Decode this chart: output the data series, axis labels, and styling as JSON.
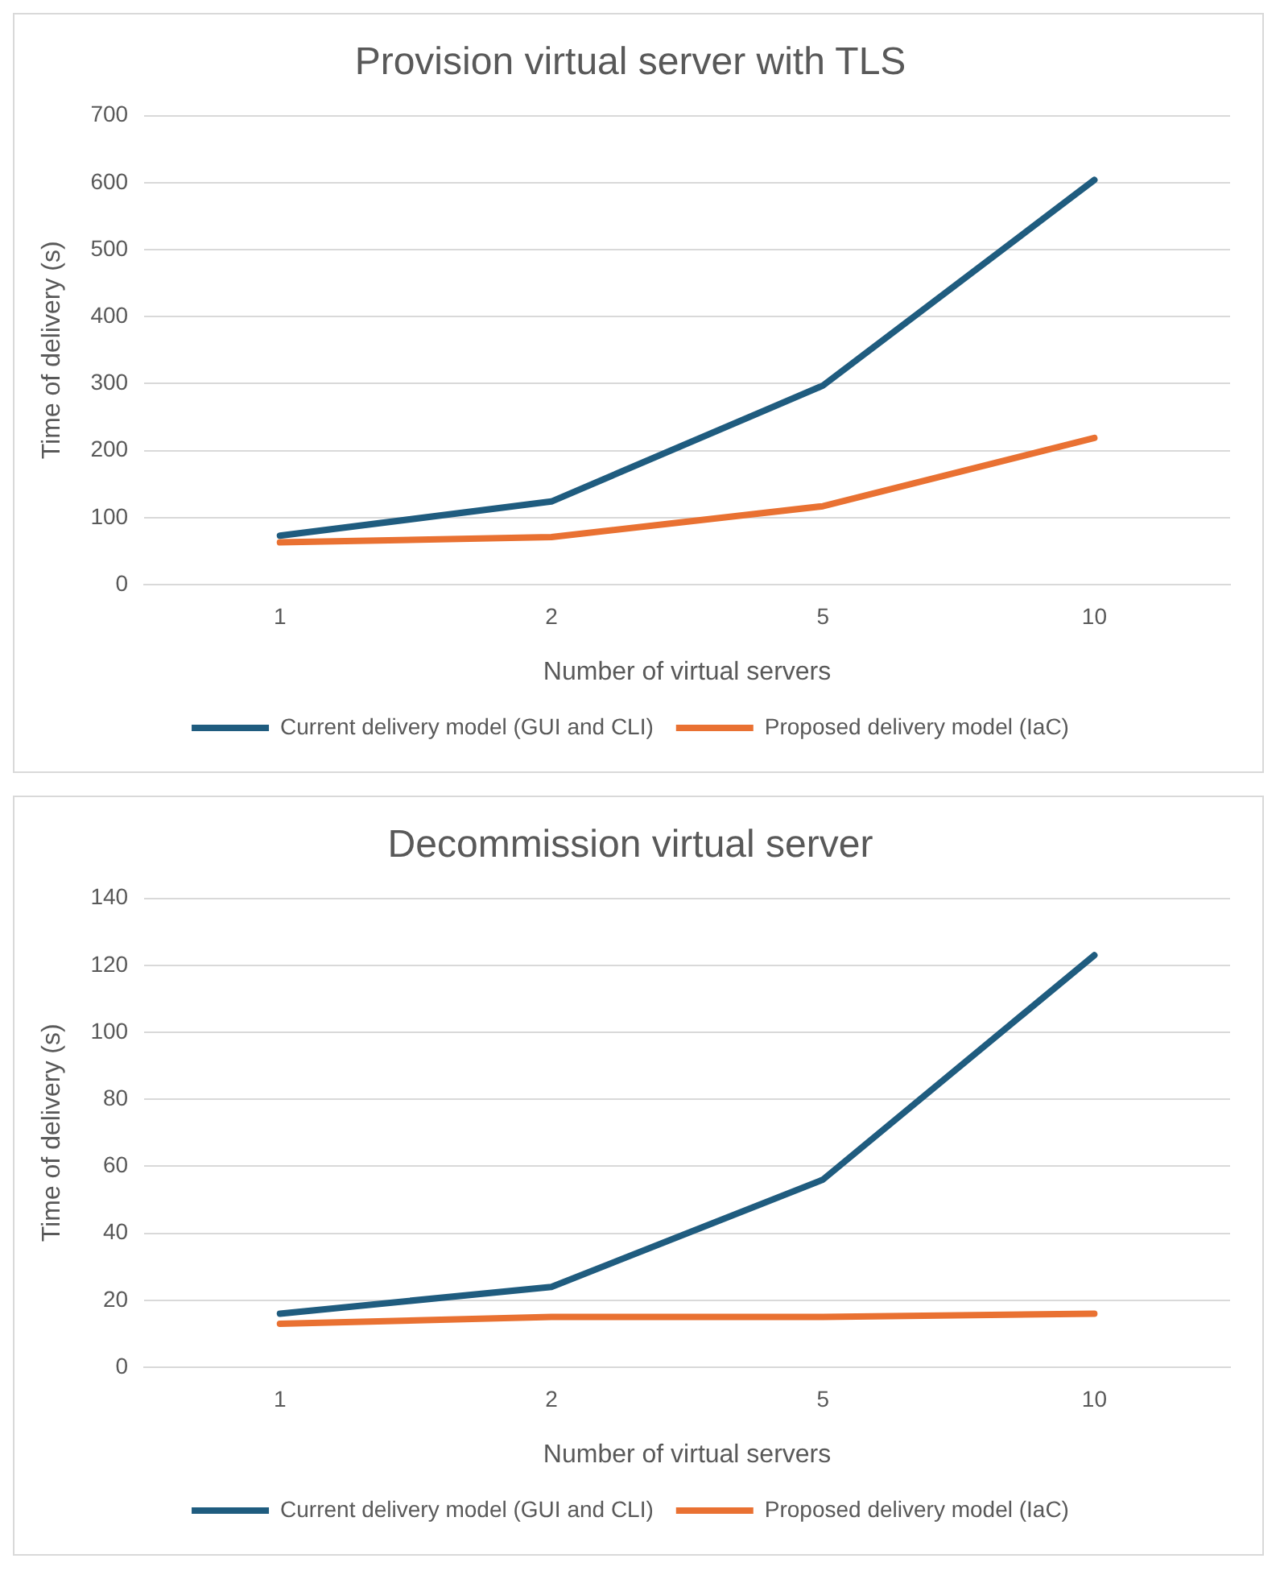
{
  "chart_data": [
    {
      "type": "line",
      "title": "Provision virtual server with TLS",
      "xlabel": "Number of virtual servers",
      "ylabel": "Time of delivery (s)",
      "categories": [
        "1",
        "2",
        "5",
        "10"
      ],
      "series": [
        {
          "name": "Current delivery model (GUI and CLI)",
          "color": "#1f5c7f",
          "values": [
            73,
            124,
            297,
            604
          ]
        },
        {
          "name": "Proposed delivery model (IaC)",
          "color": "#e97132",
          "values": [
            63,
            71,
            117,
            219
          ]
        }
      ],
      "ylim": [
        0,
        700
      ],
      "yticks": [
        0,
        100,
        200,
        300,
        400,
        500,
        600,
        700
      ],
      "grid": "y",
      "legend": "bottom",
      "marker": "none",
      "line_style": "solid"
    },
    {
      "type": "line",
      "title": "Decommission virtual server",
      "xlabel": "Number of virtual servers",
      "ylabel": "Time of delivery (s)",
      "categories": [
        "1",
        "2",
        "5",
        "10"
      ],
      "series": [
        {
          "name": "Current delivery model (GUI and CLI)",
          "color": "#1f5c7f",
          "values": [
            16,
            24,
            56,
            123
          ]
        },
        {
          "name": "Proposed delivery model (IaC)",
          "color": "#e97132",
          "values": [
            13,
            15,
            15,
            16
          ]
        }
      ],
      "ylim": [
        0,
        140
      ],
      "yticks": [
        0,
        20,
        40,
        60,
        80,
        100,
        120,
        140
      ],
      "grid": "y",
      "legend": "bottom",
      "marker": "none",
      "line_style": "solid"
    }
  ]
}
